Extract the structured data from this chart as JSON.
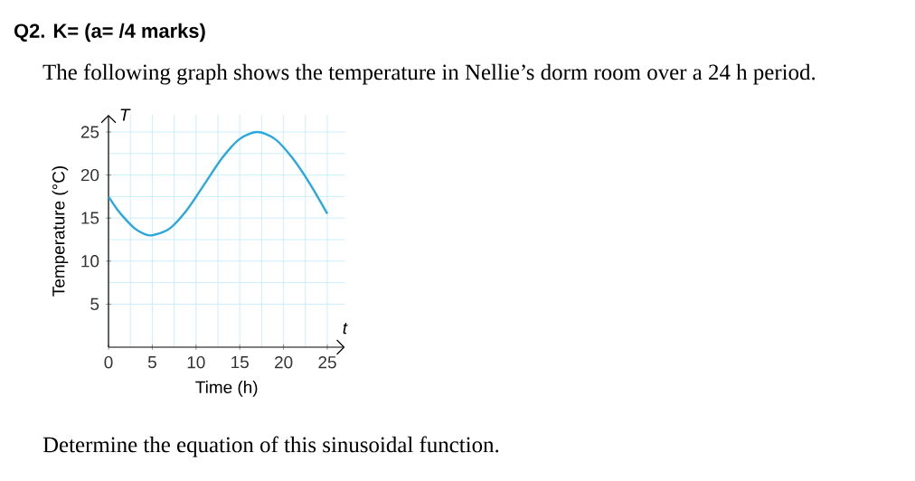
{
  "chart_data": {
    "type": "line",
    "title": "Q2.  K= (a=          /4 marks)",
    "subtitle": "The following graph shows the temperature in Nellie’s dorm room over a 24 h period.",
    "xlabel": "Time (h)",
    "ylabel": "Temperature (°C)",
    "annotations": [
      "Determine the equation of this sinusoidal function.",
      "T",
      "t"
    ],
    "x": [
      0,
      1,
      2,
      3,
      4,
      5,
      7,
      9,
      11,
      13,
      15,
      17,
      19,
      21,
      23,
      25
    ],
    "series": [
      {
        "color": "#29a8e0",
        "values": [
          17.5,
          16,
          14.8,
          13.8,
          13.2,
          13,
          13.8,
          16,
          19,
          22,
          24.2,
          25,
          24.2,
          22,
          19,
          15.5
        ]
      }
    ],
    "xlim": [
      0,
      27
    ],
    "ylim": [
      0,
      27
    ],
    "xticks": [
      0,
      5,
      10,
      15,
      20,
      25
    ],
    "yticks": [
      5,
      10,
      15,
      20,
      25
    ],
    "grid": true,
    "line_style": "solid"
  }
}
